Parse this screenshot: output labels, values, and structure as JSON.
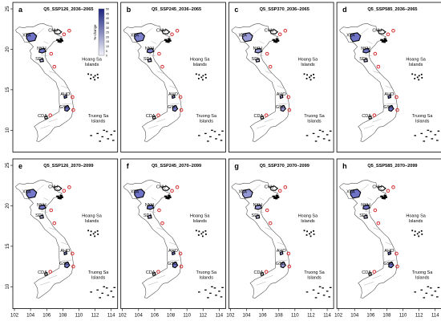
{
  "panels": [
    {
      "letter": "a",
      "title": "Q5_SSP126_2036–2065",
      "s": 1.0
    },
    {
      "letter": "b",
      "title": "Q5_SSP245_2036–2065",
      "s": 0.85
    },
    {
      "letter": "c",
      "title": "Q5_SSP370_2036–2065",
      "s": 0.55
    },
    {
      "letter": "d",
      "title": "Q5_SSP585_2036–2065",
      "s": 1.0
    },
    {
      "letter": "e",
      "title": "Q5_SSP126_2070–2099",
      "s": 0.95
    },
    {
      "letter": "f",
      "title": "Q5_SSP245_2070–2099",
      "s": 1.0
    },
    {
      "letter": "g",
      "title": "Q5_SSP370_2070–2099",
      "s": 0.6
    },
    {
      "letter": "h",
      "title": "Q5_SSP585_2070–2099",
      "s": 1.0
    }
  ],
  "x_ticks": [
    "102",
    "104",
    "106",
    "108",
    "110",
    "112",
    "114"
  ],
  "y_ticks": [
    "10",
    "15",
    "20",
    "25"
  ],
  "region_labels": [
    "XLA",
    "CHU",
    "NKH",
    "SDI",
    "AHO",
    "GSD",
    "CDA"
  ],
  "island_labels": {
    "hoang_sa": [
      "Hoang Sa",
      "Islands"
    ],
    "truong_sa": [
      "Truong Sa",
      "Islands"
    ]
  },
  "legend": {
    "title": "%-change",
    "ticks": [
      "50",
      "45",
      "40",
      "35",
      "30",
      "25",
      "20",
      "15",
      "10",
      "5",
      "0"
    ]
  },
  "colors": {
    "ramp_dark": "#1a237e",
    "ramp_light": "#f4f4fb",
    "region_fill": "#6f73c8",
    "region_fill_light": "#b9bbe6",
    "outline": "#555555",
    "marker": "#d32f2f"
  }
}
